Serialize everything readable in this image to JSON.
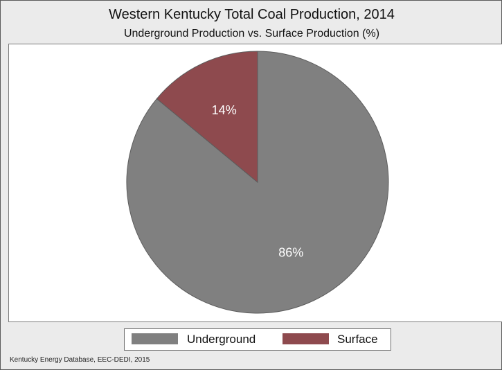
{
  "chart_data": {
    "type": "pie",
    "title": "Western Kentucky Total Coal Production, 2014",
    "subtitle": "Underground Production vs. Surface Production (%)",
    "slices": [
      {
        "label": "Underground",
        "value": 86,
        "display": "86%",
        "color": "#808080"
      },
      {
        "label": "Surface",
        "value": 14,
        "display": "14%",
        "color": "#8e4a4e"
      }
    ],
    "legend": {
      "position": "bottom",
      "entries": [
        "Underground",
        "Surface"
      ]
    },
    "source": "Kentucky Energy Database, EEC-DEDI, 2015"
  }
}
